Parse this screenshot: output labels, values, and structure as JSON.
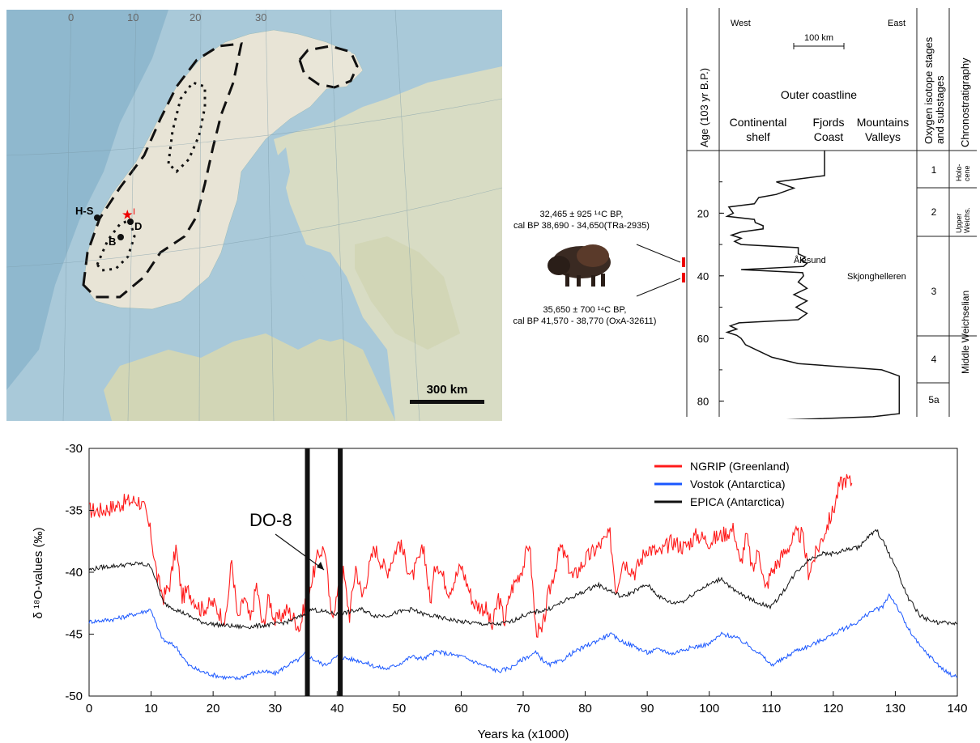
{
  "map": {
    "lon_ticks": [
      "0",
      "10",
      "20",
      "30"
    ],
    "scale_label": "300 km",
    "sites": [
      {
        "label": "H-S"
      },
      {
        "label": "D"
      },
      {
        "label": "B"
      },
      {
        "label": "I"
      }
    ]
  },
  "musk_ox": {
    "date_top_1": "32,465 ± 925 ¹⁴C BP,",
    "date_top_2": "cal BP 38,690 - 34,650(TRa-2935)",
    "date_bottom_1": "35,650 ± 700 ¹⁴C BP,",
    "date_bottom_2": "cal BP 41,570 - 38,770 (OxA-32611)"
  },
  "strat": {
    "age_header": "Age (103 yr B.P.)",
    "west": "West",
    "east": "East",
    "scale_label": "100 km",
    "outer_coastline": "Outer coastline",
    "col_shelf_1": "Continental",
    "col_shelf_2": "shelf",
    "col_fjords_1": "Fjords",
    "col_fjords_2": "Coast",
    "col_mtn_1": "Mountains",
    "col_mtn_2": "Valleys",
    "ois_header_1": "Oxygen isotope stages",
    "ois_header_2": "and substages",
    "chrono_header": "Chronostratigraphy",
    "age_ticks": [
      "20",
      "40",
      "60",
      "80"
    ],
    "ois": [
      "1",
      "2",
      "3",
      "4",
      "5a"
    ],
    "chrono": {
      "holo_1": "Holo-",
      "holo_2": "cene",
      "upper_1": "Upper",
      "upper_2": "Weichs.",
      "middle": "Middle Weichselian"
    },
    "site_alesund": "Ålesund",
    "site_skjong": "Skjonghelleren",
    "ice_extent": [
      [
        0,
        990
      ],
      [
        8,
        990
      ],
      [
        10,
        880
      ],
      [
        12,
        920
      ],
      [
        14,
        880
      ],
      [
        15,
        840
      ],
      [
        17,
        830
      ],
      [
        18,
        772
      ],
      [
        20,
        782
      ],
      [
        21,
        768
      ],
      [
        22,
        830
      ],
      [
        23,
        832
      ],
      [
        24,
        850
      ],
      [
        25,
        850
      ],
      [
        26,
        800
      ],
      [
        27,
        778
      ],
      [
        28,
        800
      ],
      [
        29,
        785
      ],
      [
        30,
        800
      ],
      [
        31,
        930
      ],
      [
        33,
        930
      ],
      [
        34,
        946
      ],
      [
        35,
        936
      ],
      [
        36,
        950
      ],
      [
        37,
        942
      ],
      [
        38,
        800
      ],
      [
        39,
        940
      ],
      [
        40,
        942
      ],
      [
        42,
        930
      ],
      [
        44,
        950
      ],
      [
        46,
        920
      ],
      [
        48,
        950
      ],
      [
        50,
        925
      ],
      [
        52,
        950
      ],
      [
        54,
        930
      ],
      [
        55,
        795
      ],
      [
        56,
        775
      ],
      [
        57,
        790
      ],
      [
        58,
        768
      ],
      [
        59,
        790
      ],
      [
        60,
        800
      ],
      [
        62,
        810
      ],
      [
        64,
        840
      ],
      [
        66,
        870
      ],
      [
        68,
        930
      ],
      [
        70,
        1120
      ],
      [
        72,
        1160
      ],
      [
        82,
        1160
      ],
      [
        84,
        1160
      ],
      [
        85,
        1100
      ],
      [
        86,
        900
      ]
    ]
  },
  "chart_data": {
    "type": "line",
    "xlabel": "Years ka (x1000)",
    "ylabel": "δ ¹⁸O-values (‰)",
    "xlim": [
      0,
      140
    ],
    "ylim": [
      -50,
      -30
    ],
    "x_ticks": [
      0,
      10,
      20,
      30,
      40,
      50,
      60,
      70,
      80,
      90,
      100,
      110,
      120,
      130,
      140
    ],
    "y_ticks": [
      -30,
      -35,
      -40,
      -45,
      -50
    ],
    "legend_position": "top-right",
    "annotation": "DO-8",
    "vertical_markers": [
      35.2,
      40.5
    ],
    "series": [
      {
        "name": "NGRIP (Greenland)",
        "color": "#ff1a1a",
        "x": [
          0,
          2,
          4,
          6,
          8,
          9,
          10,
          11,
          12,
          13,
          14,
          15,
          16,
          18,
          20,
          22,
          23,
          24,
          25,
          26,
          27,
          28,
          29,
          30,
          32,
          34,
          35,
          36,
          37,
          38,
          39,
          40,
          41,
          42,
          43,
          44,
          46,
          48,
          50,
          52,
          54,
          55,
          56,
          58,
          60,
          62,
          64,
          65,
          66,
          67,
          68,
          70,
          71,
          72,
          73,
          74,
          75,
          76,
          77,
          78,
          80,
          82,
          84,
          85,
          86,
          88,
          90,
          92,
          94,
          96,
          98,
          100,
          102,
          104,
          105,
          106,
          107,
          108,
          109,
          110,
          112,
          114,
          115,
          116,
          118,
          120,
          121,
          122,
          123
        ],
        "y": [
          -35,
          -35,
          -34.7,
          -34.3,
          -34.2,
          -35,
          -37,
          -40.5,
          -42,
          -41,
          -38,
          -42,
          -41.5,
          -43,
          -42.5,
          -44,
          -39,
          -44,
          -42,
          -44,
          -41,
          -44.5,
          -42,
          -44,
          -43,
          -44.5,
          -42,
          -40.5,
          -38.5,
          -38,
          -43.5,
          -42,
          -40,
          -43.5,
          -39.5,
          -42,
          -38,
          -40,
          -37.5,
          -40.5,
          -38,
          -42.5,
          -39,
          -41.5,
          -39.5,
          -42.5,
          -43,
          -44.5,
          -42,
          -44,
          -41.5,
          -39.5,
          -37.5,
          -44.5,
          -45,
          -42,
          -40,
          -38,
          -39,
          -40.5,
          -39,
          -38,
          -37,
          -41.5,
          -39,
          -40,
          -38,
          -38.5,
          -37.5,
          -38,
          -37,
          -37.5,
          -37,
          -36.5,
          -39.5,
          -37,
          -40,
          -38,
          -41.5,
          -40,
          -38.5,
          -37,
          -37,
          -40,
          -37.5,
          -35,
          -33,
          -32.5,
          -32.8
        ]
      },
      {
        "name": "Vostok (Antarctica)",
        "color": "#1a57ff",
        "x": [
          0,
          4,
          8,
          10,
          11,
          12,
          14,
          16,
          18,
          20,
          22,
          24,
          26,
          28,
          30,
          32,
          34,
          35,
          36,
          38,
          40,
          42,
          44,
          46,
          48,
          50,
          52,
          54,
          56,
          58,
          60,
          62,
          64,
          66,
          68,
          70,
          72,
          74,
          76,
          78,
          80,
          82,
          84,
          86,
          88,
          90,
          92,
          94,
          96,
          98,
          100,
          102,
          104,
          106,
          108,
          110,
          112,
          114,
          116,
          118,
          120,
          122,
          124,
          126,
          128,
          129,
          130,
          132,
          134,
          136,
          138,
          140
        ],
        "y": [
          -44,
          -43.8,
          -43.3,
          -43,
          -44.5,
          -45.5,
          -46,
          -47.5,
          -48,
          -48.3,
          -48.5,
          -48.6,
          -48.2,
          -48,
          -48.2,
          -47.5,
          -47,
          -46.5,
          -47,
          -47.5,
          -46.8,
          -47,
          -47.2,
          -47.6,
          -47.8,
          -47.4,
          -46.8,
          -47,
          -46.4,
          -46.6,
          -46.8,
          -47.2,
          -47.6,
          -48,
          -47.7,
          -47,
          -46.5,
          -47.5,
          -47.2,
          -46.5,
          -46,
          -45.5,
          -45,
          -45.6,
          -46,
          -46.5,
          -46.2,
          -46.6,
          -46.2,
          -46,
          -45.8,
          -45,
          -45.2,
          -45.8,
          -46.5,
          -47.5,
          -47,
          -46.3,
          -46,
          -45.5,
          -45,
          -44.5,
          -44,
          -43.2,
          -42.8,
          -41.8,
          -42.5,
          -44.5,
          -46,
          -47,
          -48,
          -48.5
        ]
      },
      {
        "name": "EPICA (Antarctica)",
        "color": "#111111",
        "x": [
          0,
          2,
          4,
          6,
          8,
          10,
          11,
          12,
          14,
          16,
          18,
          20,
          22,
          24,
          26,
          28,
          30,
          32,
          34,
          36,
          38,
          40,
          42,
          44,
          46,
          48,
          50,
          52,
          54,
          56,
          58,
          60,
          62,
          64,
          66,
          68,
          70,
          72,
          74,
          76,
          78,
          80,
          82,
          84,
          86,
          88,
          90,
          92,
          94,
          96,
          98,
          100,
          102,
          104,
          106,
          108,
          110,
          112,
          114,
          116,
          118,
          120,
          122,
          124,
          126,
          127,
          128,
          130,
          132,
          134,
          136,
          138,
          140
        ],
        "y": [
          -39.8,
          -39.6,
          -39.5,
          -39.4,
          -39.3,
          -39.5,
          -41,
          -42.5,
          -43,
          -43.5,
          -44,
          -44.2,
          -44.3,
          -44.4,
          -44.4,
          -44.3,
          -44.2,
          -44,
          -43.6,
          -43,
          -43.2,
          -43.4,
          -43.2,
          -43,
          -43.5,
          -43.5,
          -43.2,
          -43,
          -43.4,
          -43.6,
          -43.8,
          -44,
          -44.1,
          -44.2,
          -44.2,
          -44,
          -43.5,
          -43.2,
          -43,
          -42.5,
          -42,
          -41.5,
          -41,
          -41.5,
          -42,
          -41.5,
          -41,
          -42,
          -42.5,
          -42.3,
          -41.5,
          -41,
          -40.5,
          -41.5,
          -42,
          -42.5,
          -42.8,
          -41.5,
          -40,
          -39,
          -38.5,
          -38.5,
          -38.2,
          -38,
          -37,
          -36.6,
          -37.5,
          -39.5,
          -42,
          -43.5,
          -44,
          -44.1,
          -44.2
        ]
      }
    ]
  }
}
